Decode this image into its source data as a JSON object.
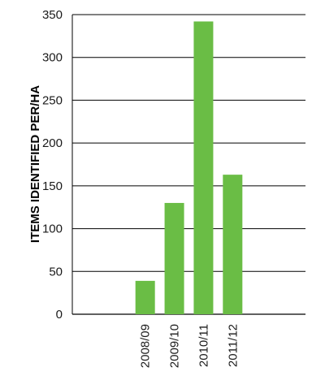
{
  "chart_data": {
    "type": "bar",
    "title": "",
    "xlabel": "",
    "ylabel": "ITEMS IDENTIFIED PER/HA",
    "categories": [
      "",
      "",
      "2008/09",
      "2009/10",
      "2010/11",
      "2011/12",
      "",
      ""
    ],
    "values": [
      null,
      null,
      39,
      130,
      342,
      163,
      null,
      null
    ],
    "ylim": [
      0,
      350
    ],
    "yticks": [
      0,
      50,
      100,
      150,
      200,
      250,
      300,
      350
    ],
    "grid": true,
    "bar_color": "#6abd45"
  }
}
